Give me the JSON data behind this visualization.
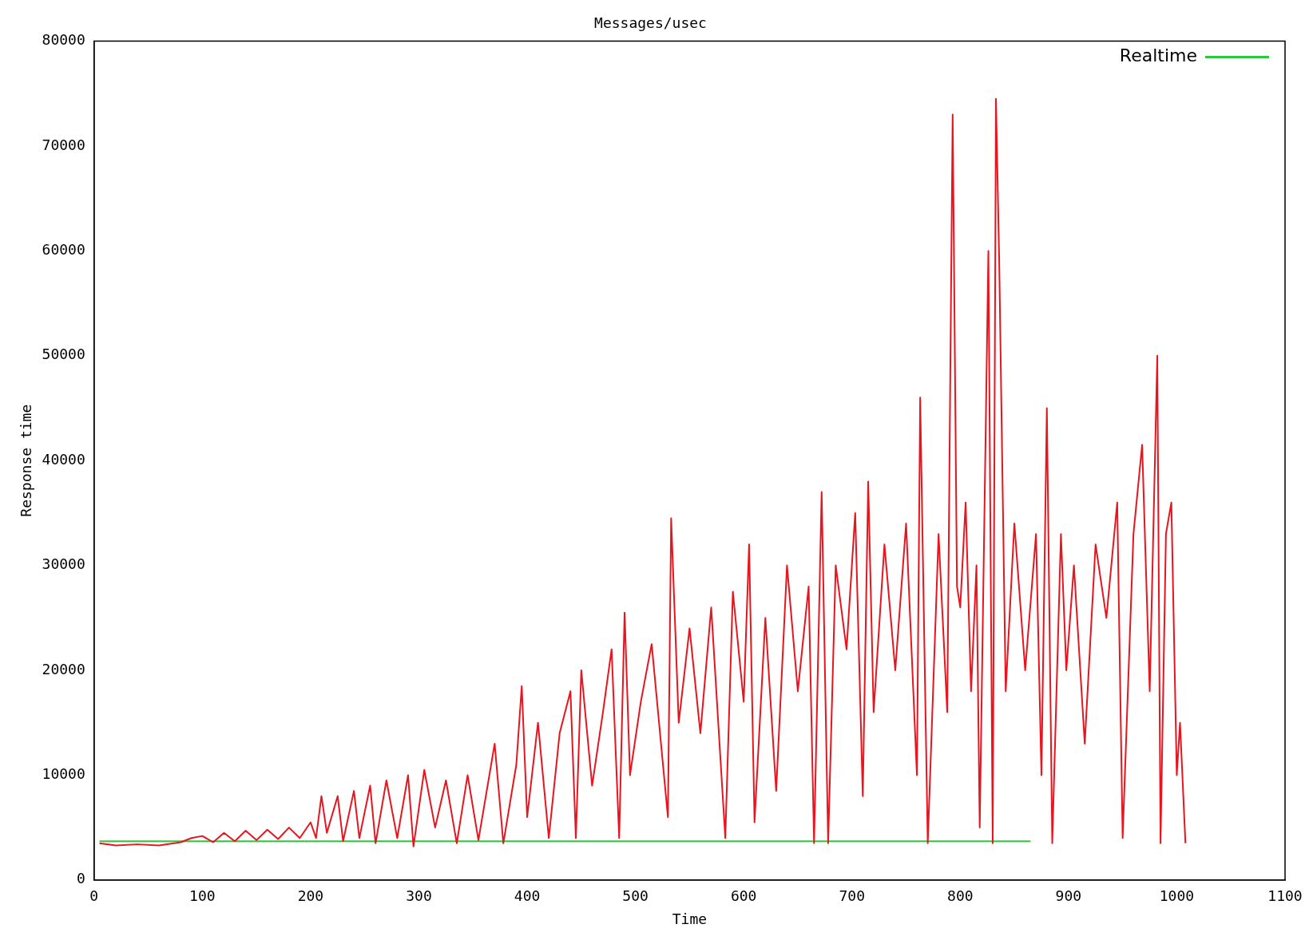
{
  "chart_data": {
    "type": "line",
    "title": "Messages/usec",
    "xlabel": "Time",
    "ylabel": "Response time",
    "xlim": [
      0,
      1100
    ],
    "xticks": [
      0,
      100,
      200,
      300,
      400,
      500,
      600,
      700,
      800,
      900,
      1000,
      1100
    ],
    "ylim": [
      0,
      80000
    ],
    "yticks": [
      0,
      10000,
      20000,
      30000,
      40000,
      50000,
      60000,
      70000,
      80000
    ],
    "grid": false,
    "legend": "top right",
    "marker": "none",
    "line_style": "solid",
    "series": [
      {
        "color": "#e8141e",
        "x": [
          5,
          20,
          40,
          60,
          80,
          90,
          100,
          110,
          120,
          130,
          140,
          150,
          160,
          170,
          180,
          190,
          200,
          205,
          210,
          215,
          225,
          230,
          240,
          245,
          255,
          260,
          270,
          280,
          290,
          295,
          305,
          315,
          325,
          335,
          345,
          355,
          370,
          378,
          390,
          395,
          400,
          410,
          420,
          430,
          440,
          445,
          450,
          460,
          470,
          478,
          485,
          490,
          495,
          505,
          515,
          530,
          533,
          540,
          550,
          560,
          570,
          583,
          590,
          600,
          605,
          610,
          620,
          630,
          640,
          650,
          660,
          665,
          672,
          678,
          685,
          695,
          703,
          710,
          715,
          720,
          730,
          740,
          750,
          760,
          763,
          770,
          780,
          788,
          793,
          797,
          800,
          805,
          810,
          815,
          818,
          826,
          830,
          833,
          836,
          842,
          850,
          860,
          870,
          875,
          880,
          885,
          893,
          898,
          905,
          915,
          925,
          935,
          945,
          950,
          960,
          968,
          975,
          982,
          985,
          990,
          995,
          1000,
          1003,
          1008
        ],
        "values": [
          3500,
          3300,
          3400,
          3300,
          3600,
          4000,
          4200,
          3600,
          4500,
          3700,
          4700,
          3800,
          4800,
          3900,
          5000,
          4000,
          5500,
          4000,
          8000,
          4500,
          8000,
          3700,
          8500,
          4000,
          9000,
          3500,
          9500,
          4000,
          10000,
          3200,
          10500,
          5000,
          9500,
          3500,
          10000,
          3800,
          13000,
          3500,
          11000,
          18500,
          6000,
          15000,
          4000,
          14000,
          18000,
          4000,
          20000,
          9000,
          16000,
          22000,
          4000,
          25500,
          10000,
          17000,
          22500,
          6000,
          34500,
          15000,
          24000,
          14000,
          26000,
          4000,
          27500,
          17000,
          32000,
          5500,
          25000,
          8500,
          30000,
          18000,
          28000,
          3500,
          37000,
          3500,
          30000,
          22000,
          35000,
          8000,
          38000,
          16000,
          32000,
          20000,
          34000,
          10000,
          46000,
          3500,
          33000,
          16000,
          73000,
          28000,
          26000,
          36000,
          18000,
          30000,
          5000,
          60000,
          3500,
          74500,
          59000,
          18000,
          34000,
          20000,
          33000,
          10000,
          45000,
          3500,
          33000,
          20000,
          30000,
          13000,
          32000,
          25000,
          36000,
          4000,
          33000,
          41500,
          18000,
          50000,
          3500,
          33000,
          36000,
          10000,
          15000,
          3500
        ]
      },
      {
        "name": "Realtime",
        "color": "#2ec83c",
        "x": [
          5,
          865
        ],
        "values": [
          3700,
          3700
        ]
      }
    ]
  }
}
